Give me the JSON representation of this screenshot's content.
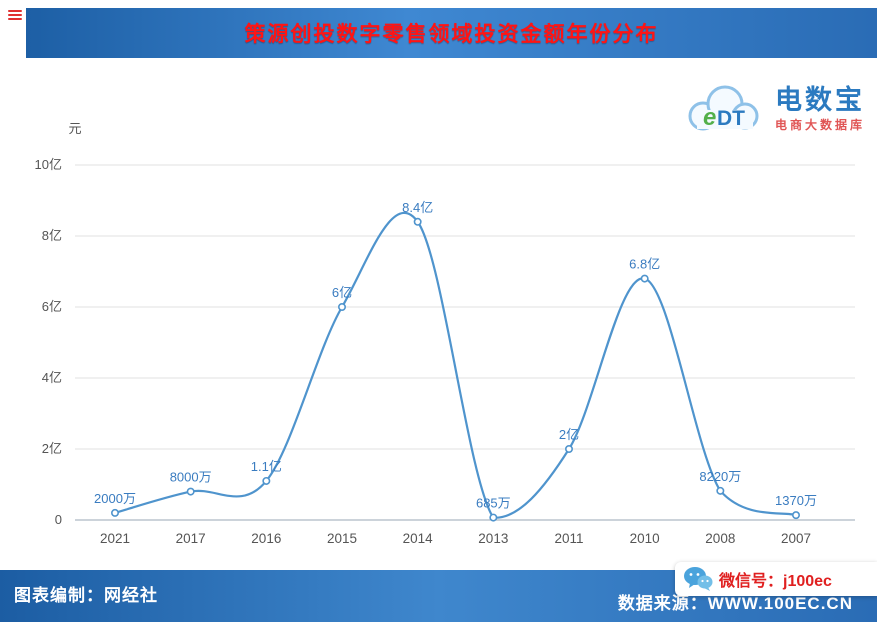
{
  "header": {
    "title": "策源创投数字零售领域投资金额年份分布"
  },
  "logo": {
    "mark_e": "e",
    "mark_dt": "DT",
    "name": "电数宝",
    "subtitle": "电商大数据库"
  },
  "chart_data": {
    "type": "line",
    "title": "策源创投数字零售领域投资金额年份分布",
    "xlabel": "",
    "ylabel": "元",
    "categories": [
      "2021",
      "2017",
      "2016",
      "2015",
      "2014",
      "2013",
      "2011",
      "2010",
      "2008",
      "2007"
    ],
    "values": [
      0.2,
      0.8,
      1.1,
      6,
      8.4,
      0.0685,
      2,
      6.8,
      0.822,
      0.137
    ],
    "point_labels": [
      "2000万",
      "8000万",
      "1.1亿",
      "6亿",
      "8.4亿",
      "685万",
      "2亿",
      "6.8亿",
      "8220万",
      "1370万"
    ],
    "ylim": [
      0,
      10
    ],
    "ytick_labels": [
      "0",
      "2亿",
      "4亿",
      "6亿",
      "8亿",
      "10亿"
    ],
    "grid": true,
    "legend": "none",
    "smooth": true,
    "line_color": "#4f94cd",
    "marker_fill": "#ffffff",
    "label_color": "#3a7cc0",
    "axis_text_color": "#555555",
    "gridline_color": "#e2e2e2",
    "baseline_color": "#9aa7b4"
  },
  "footer": {
    "left": "图表编制：网经社",
    "right": "数据来源：WWW.100EC.CN",
    "wechat": "微信号：j100ec"
  }
}
